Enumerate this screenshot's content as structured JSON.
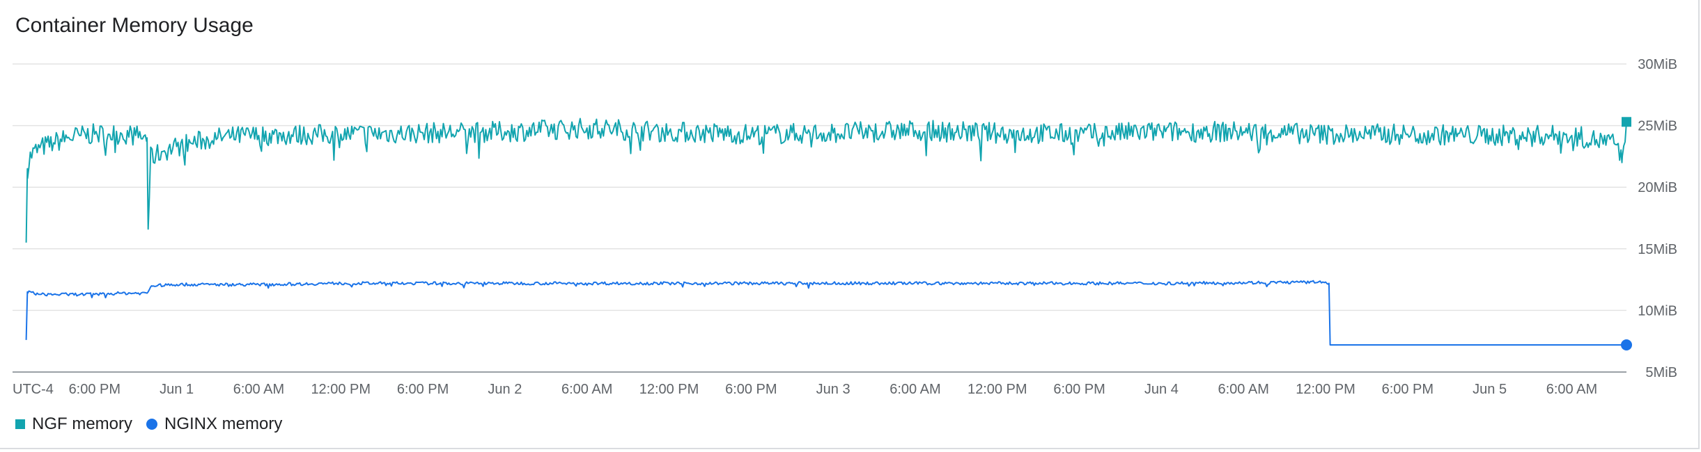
{
  "chart_data": {
    "type": "line",
    "title": "Container Memory Usage",
    "timezone_label": "UTC-4",
    "ylim": [
      5,
      30
    ],
    "y_ticks": [
      {
        "value": 30,
        "label": "30MiB"
      },
      {
        "value": 25,
        "label": "25MiB"
      },
      {
        "value": 20,
        "label": "20MiB"
      },
      {
        "value": 15,
        "label": "15MiB"
      },
      {
        "value": 10,
        "label": "10MiB"
      },
      {
        "value": 5,
        "label": "5MiB"
      }
    ],
    "xlim": [
      "2024-05-31T12:00",
      "2024-06-05T10:00"
    ],
    "x_ticks": [
      {
        "t": "2024-05-31T18:00",
        "label": "6:00 PM"
      },
      {
        "t": "2024-06-01T00:00",
        "label": "Jun 1"
      },
      {
        "t": "2024-06-01T06:00",
        "label": "6:00 AM"
      },
      {
        "t": "2024-06-01T12:00",
        "label": "12:00 PM"
      },
      {
        "t": "2024-06-01T18:00",
        "label": "6:00 PM"
      },
      {
        "t": "2024-06-02T00:00",
        "label": "Jun 2"
      },
      {
        "t": "2024-06-02T06:00",
        "label": "6:00 AM"
      },
      {
        "t": "2024-06-02T12:00",
        "label": "12:00 PM"
      },
      {
        "t": "2024-06-02T18:00",
        "label": "6:00 PM"
      },
      {
        "t": "2024-06-03T00:00",
        "label": "Jun 3"
      },
      {
        "t": "2024-06-03T06:00",
        "label": "6:00 AM"
      },
      {
        "t": "2024-06-03T12:00",
        "label": "12:00 PM"
      },
      {
        "t": "2024-06-03T18:00",
        "label": "6:00 PM"
      },
      {
        "t": "2024-06-04T00:00",
        "label": "Jun 4"
      },
      {
        "t": "2024-06-04T06:00",
        "label": "6:00 AM"
      },
      {
        "t": "2024-06-04T12:00",
        "label": "12:00 PM"
      },
      {
        "t": "2024-06-04T18:00",
        "label": "6:00 PM"
      },
      {
        "t": "2024-06-05T00:00",
        "label": "Jun 5"
      },
      {
        "t": "2024-06-05T06:00",
        "label": "6:00 AM"
      }
    ],
    "grid": true,
    "legend_position": "bottom-left",
    "series": [
      {
        "name": "NGF memory",
        "color": "#12a4af",
        "marker": "square",
        "points": [
          [
            "2024-05-31T13:00",
            15.5
          ],
          [
            "2024-05-31T13:05",
            21.5
          ],
          [
            "2024-05-31T13:20",
            22.6
          ],
          [
            "2024-05-31T14:00",
            23.2
          ],
          [
            "2024-05-31T15:00",
            23.6
          ],
          [
            "2024-05-31T16:00",
            24.0
          ],
          [
            "2024-05-31T17:00",
            24.2
          ],
          [
            "2024-05-31T18:00",
            24.3
          ],
          [
            "2024-05-31T19:00",
            24.3
          ],
          [
            "2024-05-31T20:00",
            24.3
          ],
          [
            "2024-05-31T21:00",
            24.2
          ],
          [
            "2024-05-31T21:50",
            24.0
          ],
          [
            "2024-05-31T21:55",
            16.6
          ],
          [
            "2024-05-31T22:05",
            22.4
          ],
          [
            "2024-05-31T23:00",
            22.9
          ],
          [
            "2024-06-01T00:00",
            23.3
          ],
          [
            "2024-06-01T01:00",
            23.6
          ],
          [
            "2024-06-01T02:00",
            23.8
          ],
          [
            "2024-06-01T03:00",
            24.0
          ],
          [
            "2024-06-01T04:00",
            24.1
          ],
          [
            "2024-06-01T06:00",
            24.2
          ],
          [
            "2024-06-01T12:00",
            24.3
          ],
          [
            "2024-06-01T18:00",
            24.4
          ],
          [
            "2024-06-02T00:00",
            24.5
          ],
          [
            "2024-06-02T06:00",
            24.8
          ],
          [
            "2024-06-02T12:00",
            24.5
          ],
          [
            "2024-06-02T18:00",
            24.3
          ],
          [
            "2024-06-03T00:00",
            24.4
          ],
          [
            "2024-06-03T06:00",
            24.6
          ],
          [
            "2024-06-03T12:00",
            24.4
          ],
          [
            "2024-06-03T18:00",
            24.3
          ],
          [
            "2024-06-04T00:00",
            24.5
          ],
          [
            "2024-06-04T06:00",
            24.5
          ],
          [
            "2024-06-04T12:00",
            24.3
          ],
          [
            "2024-06-04T18:00",
            24.3
          ],
          [
            "2024-06-05T00:00",
            24.2
          ],
          [
            "2024-06-05T06:00",
            24.2
          ],
          [
            "2024-06-05T09:20",
            23.5
          ],
          [
            "2024-06-05T09:40",
            22.0
          ],
          [
            "2024-06-05T10:00",
            25.3
          ]
        ]
      },
      {
        "name": "NGINX memory",
        "color": "#1a73e8",
        "marker": "circle",
        "points": [
          [
            "2024-05-31T13:00",
            7.6
          ],
          [
            "2024-05-31T13:05",
            11.5
          ],
          [
            "2024-05-31T14:00",
            11.3
          ],
          [
            "2024-05-31T16:00",
            11.3
          ],
          [
            "2024-05-31T18:00",
            11.3
          ],
          [
            "2024-05-31T20:00",
            11.4
          ],
          [
            "2024-05-31T21:50",
            11.4
          ],
          [
            "2024-05-31T22:10",
            12.0
          ],
          [
            "2024-06-01T00:00",
            12.1
          ],
          [
            "2024-06-01T06:00",
            12.1
          ],
          [
            "2024-06-01T12:00",
            12.2
          ],
          [
            "2024-06-02T00:00",
            12.2
          ],
          [
            "2024-06-02T12:00",
            12.2
          ],
          [
            "2024-06-03T00:00",
            12.2
          ],
          [
            "2024-06-03T12:00",
            12.2
          ],
          [
            "2024-06-04T00:00",
            12.2
          ],
          [
            "2024-06-04T12:00",
            12.3
          ],
          [
            "2024-06-04T12:15",
            12.2
          ],
          [
            "2024-06-04T12:20",
            7.2
          ],
          [
            "2024-06-05T10:00",
            7.2
          ]
        ]
      }
    ]
  }
}
